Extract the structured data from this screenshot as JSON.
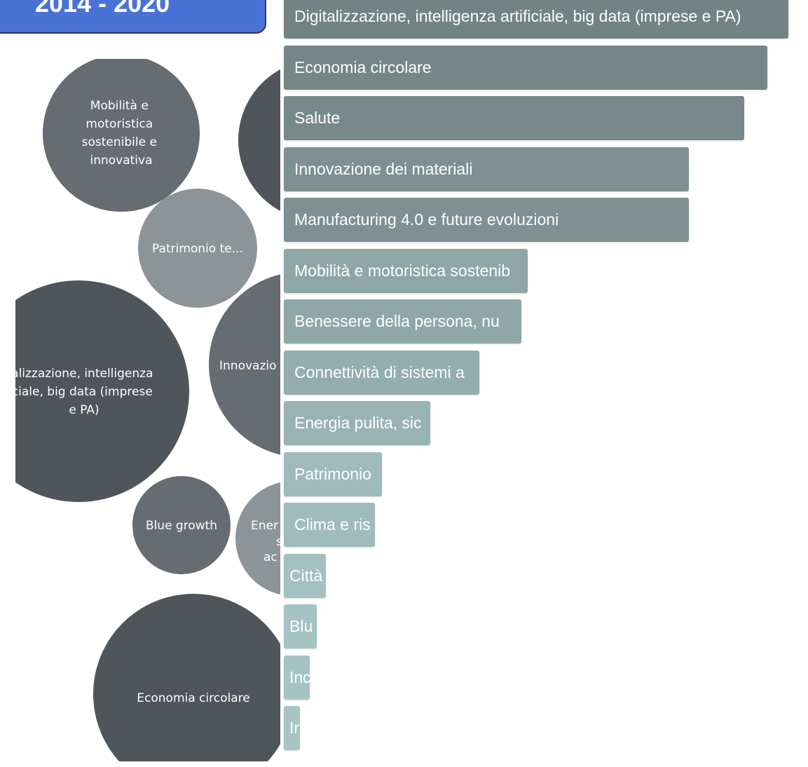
{
  "header": {
    "title": "2014 - 2020"
  },
  "colors": {
    "header_bg": "#4a72d6",
    "header_border": "#2b3a57",
    "bar_light": "#a9c7c8",
    "bar_dark": "#738384",
    "bubble_dark": "#4f555b",
    "bubble_mid": "#676c72",
    "bubble_light": "#8d9497"
  },
  "bubble_chart": {
    "bubbles": [
      {
        "id": "mobilita",
        "lines": [
          "Mobilità e",
          "motoristica",
          "sostenibile e",
          "innovativa"
        ],
        "tone": "mid"
      },
      {
        "id": "patrimonio",
        "lines": [
          "Patrimonio te..."
        ],
        "tone": "light"
      },
      {
        "id": "digitalizzazione",
        "lines": [
          "alizzazione, intelligenza",
          "ciale, big data (imprese",
          "e PA)"
        ],
        "tone": "dark"
      },
      {
        "id": "innovazione",
        "lines": [
          "Innovazio"
        ],
        "tone": "mid"
      },
      {
        "id": "salute",
        "lines": [],
        "tone": "dark"
      },
      {
        "id": "blue-growth",
        "lines": [
          "Blue growth"
        ],
        "tone": "mid"
      },
      {
        "id": "energia",
        "lines": [
          "Ener",
          "s",
          "ac"
        ],
        "tone": "light"
      },
      {
        "id": "economia",
        "lines": [
          "Economia circolare"
        ],
        "tone": "dark"
      }
    ]
  },
  "chart_data": {
    "type": "bar",
    "orientation": "horizontal",
    "categories": [
      "Digitalizzazione, intelligenza artificiale, big data (imprese e PA)",
      "Economia circolare",
      "Salute",
      "Innovazione dei materiali",
      "Manufacturing 4.0 e future evoluzioni",
      "Mobilità e motoristica sostenib",
      "Benessere della persona, nu",
      "Connettività di sistemi a",
      "Energia pulita, sic",
      "Patrimonio",
      "Clima e ris",
      "Città",
      "Blu",
      "Inc",
      "Ir"
    ],
    "values": [
      100,
      95.8,
      91.3,
      80.3,
      80.3,
      48.4,
      47.1,
      38.7,
      29.0,
      19.4,
      18.1,
      8.4,
      6.5,
      5.2,
      3.2
    ],
    "value_unit": "percent of largest bar",
    "xlim": [
      0,
      100
    ],
    "title": "",
    "xlabel": "",
    "ylabel": ""
  }
}
